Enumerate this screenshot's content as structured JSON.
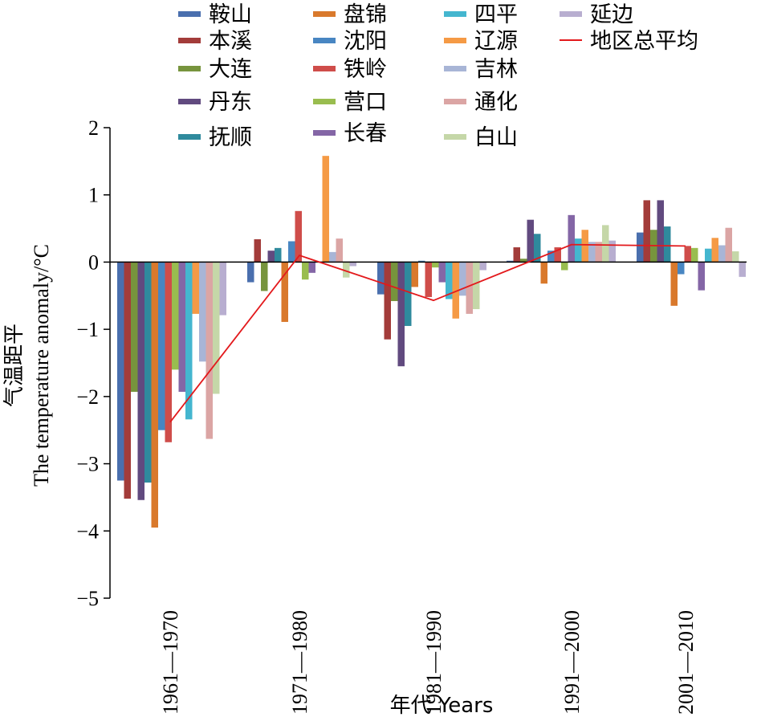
{
  "chart_data": {
    "type": "bar",
    "xlabel": "年代 Years",
    "ylabel_cn": "气温距平",
    "ylabel_en": "The temperature anomaly/°C",
    "ylim": [
      -5,
      2
    ],
    "yticks": [
      "−5",
      "−4",
      "−3",
      "−2",
      "−1",
      "0",
      "1",
      "2"
    ],
    "categories": [
      "1961—1970",
      "1971—1980",
      "1981—1990",
      "1991—2000",
      "2001—2010"
    ],
    "legend_position": "top",
    "series": [
      {
        "name": "鞍山",
        "color": "#4a6fae",
        "values": [
          -3.25,
          -0.3,
          -0.48,
          0.02,
          0.44
        ]
      },
      {
        "name": "本溪",
        "color": "#a33c3a",
        "values": [
          -3.52,
          0.34,
          -1.15,
          0.22,
          0.92
        ]
      },
      {
        "name": "大连",
        "color": "#77943d",
        "values": [
          -1.93,
          -0.43,
          -0.58,
          0.05,
          0.48
        ]
      },
      {
        "name": "丹东",
        "color": "#614a7f",
        "values": [
          -3.54,
          0.17,
          -1.55,
          0.63,
          0.92
        ]
      },
      {
        "name": "抚顺",
        "color": "#2f8a9d",
        "values": [
          -3.28,
          0.21,
          -0.95,
          0.42,
          0.53
        ]
      },
      {
        "name": "盘锦",
        "color": "#d9792c",
        "values": [
          -3.95,
          -0.89,
          -0.37,
          -0.32,
          -0.65
        ]
      },
      {
        "name": "沈阳",
        "color": "#4886c2",
        "values": [
          -2.5,
          0.31,
          0.02,
          0.17,
          -0.18
        ]
      },
      {
        "name": "铁岭",
        "color": "#cf4d4a",
        "values": [
          -2.68,
          0.76,
          -0.52,
          0.22,
          0.24
        ]
      },
      {
        "name": "营口",
        "color": "#99bd4f",
        "values": [
          -1.6,
          -0.26,
          -0.08,
          -0.12,
          0.21
        ]
      },
      {
        "name": "长春",
        "color": "#8466a6",
        "values": [
          -1.93,
          -0.16,
          -0.3,
          0.7,
          -0.42
        ]
      },
      {
        "name": "四平",
        "color": "#44b6cf",
        "values": [
          -2.34,
          0.0,
          -0.55,
          0.35,
          0.2
        ]
      },
      {
        "name": "辽源",
        "color": "#f59a45",
        "values": [
          -0.77,
          1.58,
          -0.84,
          0.48,
          0.36
        ]
      },
      {
        "name": "吉林",
        "color": "#a8b5d6",
        "values": [
          -1.48,
          0.15,
          -0.5,
          0.3,
          0.25
        ]
      },
      {
        "name": "通化",
        "color": "#dba5a4",
        "values": [
          -2.63,
          0.35,
          -0.77,
          0.3,
          0.51
        ]
      },
      {
        "name": "白山",
        "color": "#c5d7a8",
        "values": [
          -1.96,
          -0.23,
          -0.7,
          0.55,
          0.16
        ]
      },
      {
        "name": "延边",
        "color": "#b8aed0",
        "values": [
          -0.79,
          -0.06,
          -0.12,
          0.32,
          -0.22
        ]
      }
    ],
    "average_series": {
      "name": "地区总平均",
      "color": "#e3191c",
      "values": [
        -2.38,
        0.1,
        -0.57,
        0.26,
        0.24
      ]
    }
  }
}
